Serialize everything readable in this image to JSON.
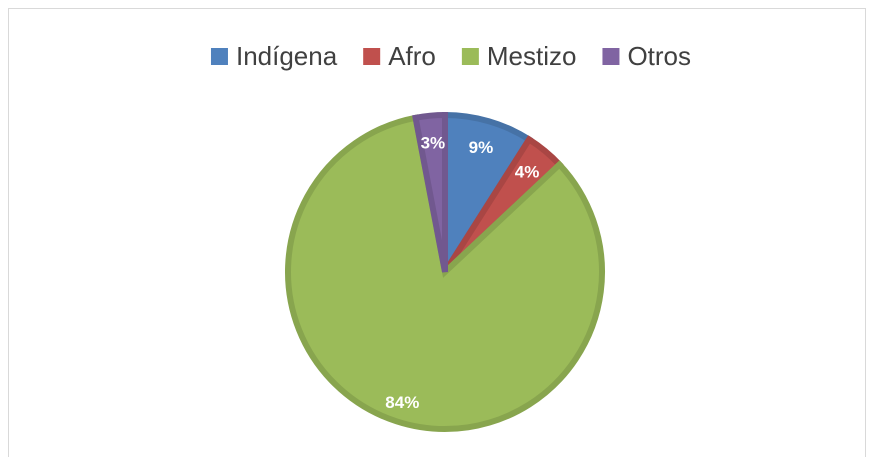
{
  "chart_data": {
    "type": "pie",
    "categories": [
      "Indígena",
      "Afro",
      "Mestizo",
      "Otros"
    ],
    "values": [
      9,
      4,
      84,
      3
    ],
    "value_labels": [
      "9%",
      "4%",
      "84%",
      "3%"
    ],
    "colors": [
      "#4f81bd",
      "#c0504d",
      "#9bbb59",
      "#8064a2"
    ],
    "legend": "top"
  }
}
